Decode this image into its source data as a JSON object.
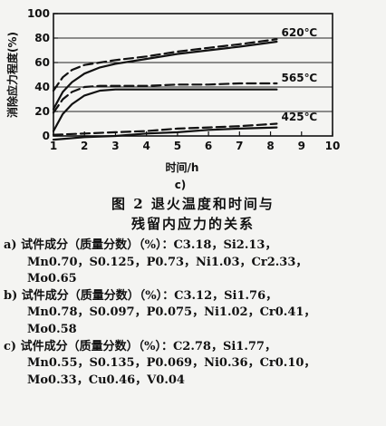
{
  "chart_data": {
    "type": "line",
    "panel_label": "c)",
    "xlabel": "时间/h",
    "ylabel": "消除应力程度(%)",
    "xlim": [
      1,
      10
    ],
    "ylim": [
      0,
      100
    ],
    "x_ticks": [
      1,
      2,
      3,
      4,
      5,
      6,
      7,
      8,
      9,
      10
    ],
    "y_ticks": [
      0,
      20,
      40,
      60,
      80,
      100
    ],
    "y_gridlines": [
      20,
      40,
      60,
      80
    ],
    "grid": "horizontal",
    "series": [
      {
        "name": "620℃",
        "style": "solid",
        "x": [
          1,
          1.3,
          1.6,
          2,
          2.5,
          3,
          4,
          5,
          6,
          7,
          8.2
        ],
        "y": [
          22,
          36,
          44,
          51,
          56,
          59,
          63,
          67,
          70,
          73,
          77
        ]
      },
      {
        "name": "620℃",
        "style": "dashed",
        "x": [
          1,
          1.3,
          1.6,
          2,
          2.5,
          3,
          4,
          5,
          6,
          7,
          8.2
        ],
        "y": [
          37,
          48,
          54,
          58,
          60,
          62,
          65,
          69,
          72,
          75,
          79
        ]
      },
      {
        "name": "565℃",
        "style": "solid",
        "x": [
          1,
          1.3,
          1.6,
          2,
          2.5,
          3,
          4,
          5,
          6,
          7,
          8.2
        ],
        "y": [
          4,
          18,
          26,
          33,
          37,
          38,
          38,
          38,
          38,
          38,
          38
        ]
      },
      {
        "name": "565℃",
        "style": "dashed",
        "x": [
          1,
          1.3,
          1.6,
          2,
          2.5,
          3,
          4,
          5,
          6,
          7,
          8.2
        ],
        "y": [
          19,
          30,
          36,
          40,
          41,
          41,
          41,
          42,
          42,
          43,
          43
        ]
      },
      {
        "name": "425℃",
        "style": "solid",
        "x": [
          1,
          2,
          3,
          4,
          5,
          6,
          7,
          8.2
        ],
        "y": [
          -3,
          -1,
          0,
          2,
          3,
          5,
          6,
          7
        ]
      },
      {
        "name": "425℃",
        "style": "dashed",
        "x": [
          1,
          2,
          3,
          4,
          5,
          6,
          7,
          8.2
        ],
        "y": [
          1,
          2,
          3,
          4,
          6,
          7,
          8,
          10
        ]
      }
    ],
    "series_labels": [
      "620℃",
      "565℃",
      "425℃"
    ]
  },
  "figure": {
    "caption_line1": "图  2   退火温度和时间与",
    "caption_line2": "残留内应力的关系"
  },
  "notes": [
    "a) 试件成分（质量分数）（%）：C3.18，Si2.13，",
    "Mn0.70，S0.125，P0.73，Ni1.03，Cr2.33，",
    "Mo0.65",
    "b) 试件成分（质量分数）（%）：C3.12，Si1.76，",
    "Mn0.78，S0.097，P0.075，Ni1.02，Cr0.41，",
    "Mo0.58",
    "c) 试件成分（质量分数）（%）：C2.78，Si1.77，",
    "Mn0.55，S0.135，P0.069，Ni0.36，Cr0.10，",
    "Mo0.33，Cu0.46，V0.04"
  ]
}
